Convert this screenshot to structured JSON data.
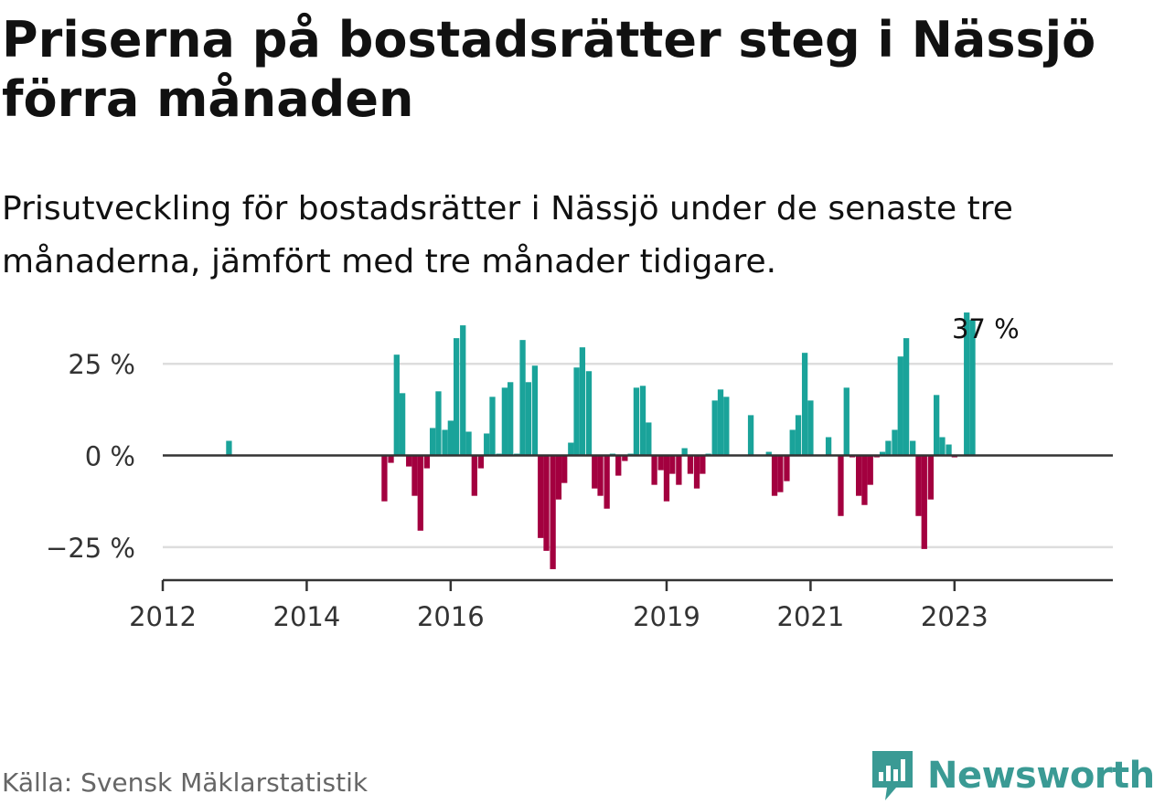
{
  "title": "Priserna på bostadsrätter steg i Nässjö förra månaden",
  "subtitle": "Prisutveckling för bostadsrätter i Nässjö under de senaste tre månaderna, jämfört med tre månader tidigare.",
  "source": "Källa: Svensk Mäklarstatistik",
  "brand": "Newsworthy",
  "colors": {
    "positive": "#1aa39a",
    "negative": "#a3003f",
    "axis": "#333333",
    "grid": "#dddddd",
    "brand": "#3a9a94"
  },
  "chart_data": {
    "type": "bar",
    "title": "",
    "xlabel": "",
    "ylabel": "",
    "ylim": [
      -34,
      42
    ],
    "yticks": [
      -25,
      0,
      25
    ],
    "ytick_labels": [
      "−25 %",
      "0 %",
      "25 %"
    ],
    "xticks": [
      2012,
      2014,
      2016,
      2019,
      2021,
      2023
    ],
    "xlim": [
      2012,
      2025.2
    ],
    "grid": true,
    "annotation": {
      "text": "37 %",
      "x": 2023.33
    },
    "x": [
      2012.92,
      2015.08,
      2015.17,
      2015.25,
      2015.33,
      2015.42,
      2015.5,
      2015.58,
      2015.67,
      2015.75,
      2015.83,
      2015.92,
      2016.0,
      2016.08,
      2016.17,
      2016.25,
      2016.33,
      2016.42,
      2016.5,
      2016.58,
      2016.67,
      2016.75,
      2016.83,
      2016.92,
      2017.0,
      2017.08,
      2017.17,
      2017.25,
      2017.33,
      2017.42,
      2017.5,
      2017.58,
      2017.67,
      2017.75,
      2017.83,
      2017.92,
      2018.0,
      2018.08,
      2018.17,
      2018.25,
      2018.33,
      2018.42,
      2018.5,
      2018.58,
      2018.67,
      2018.75,
      2018.83,
      2018.92,
      2019.0,
      2019.08,
      2019.17,
      2019.25,
      2019.33,
      2019.42,
      2019.5,
      2019.58,
      2019.67,
      2019.75,
      2019.83,
      2020.17,
      2020.42,
      2020.5,
      2020.58,
      2020.67,
      2020.75,
      2020.83,
      2020.92,
      2021.0,
      2021.25,
      2021.42,
      2021.5,
      2021.58,
      2021.67,
      2021.75,
      2021.83,
      2021.92,
      2022.0,
      2022.08,
      2022.17,
      2022.25,
      2022.33,
      2022.42,
      2022.5,
      2022.58,
      2022.67,
      2022.75,
      2022.83,
      2022.92,
      2023.0,
      2023.17,
      2023.25
    ],
    "values": [
      4,
      -12.5,
      -2,
      27.5,
      17,
      -3,
      -11,
      -20.5,
      -3.5,
      7.5,
      17.5,
      7,
      9.5,
      32,
      35.5,
      6.5,
      -11,
      -3.5,
      6,
      16,
      0.5,
      18.5,
      20,
      0.5,
      31.5,
      20,
      24.5,
      -22.5,
      -26,
      -31,
      -12,
      -7.5,
      3.5,
      24,
      29.5,
      23,
      -9,
      -11,
      -14.5,
      0.5,
      -5.5,
      -1.5,
      0.5,
      18.5,
      19,
      9,
      -8,
      -4,
      -12.5,
      -5,
      -8,
      2,
      -5,
      -9,
      -5,
      0.5,
      15,
      18,
      16,
      11,
      1,
      -11,
      -10,
      -7,
      7,
      11,
      28,
      15,
      5,
      -16.5,
      18.5,
      -0.5,
      -11,
      -13.5,
      -8,
      -0.5,
      1,
      4,
      7,
      27,
      32,
      4,
      -16.5,
      -25.5,
      -12,
      16.5,
      5,
      3,
      -0.5,
      39,
      37
    ]
  }
}
